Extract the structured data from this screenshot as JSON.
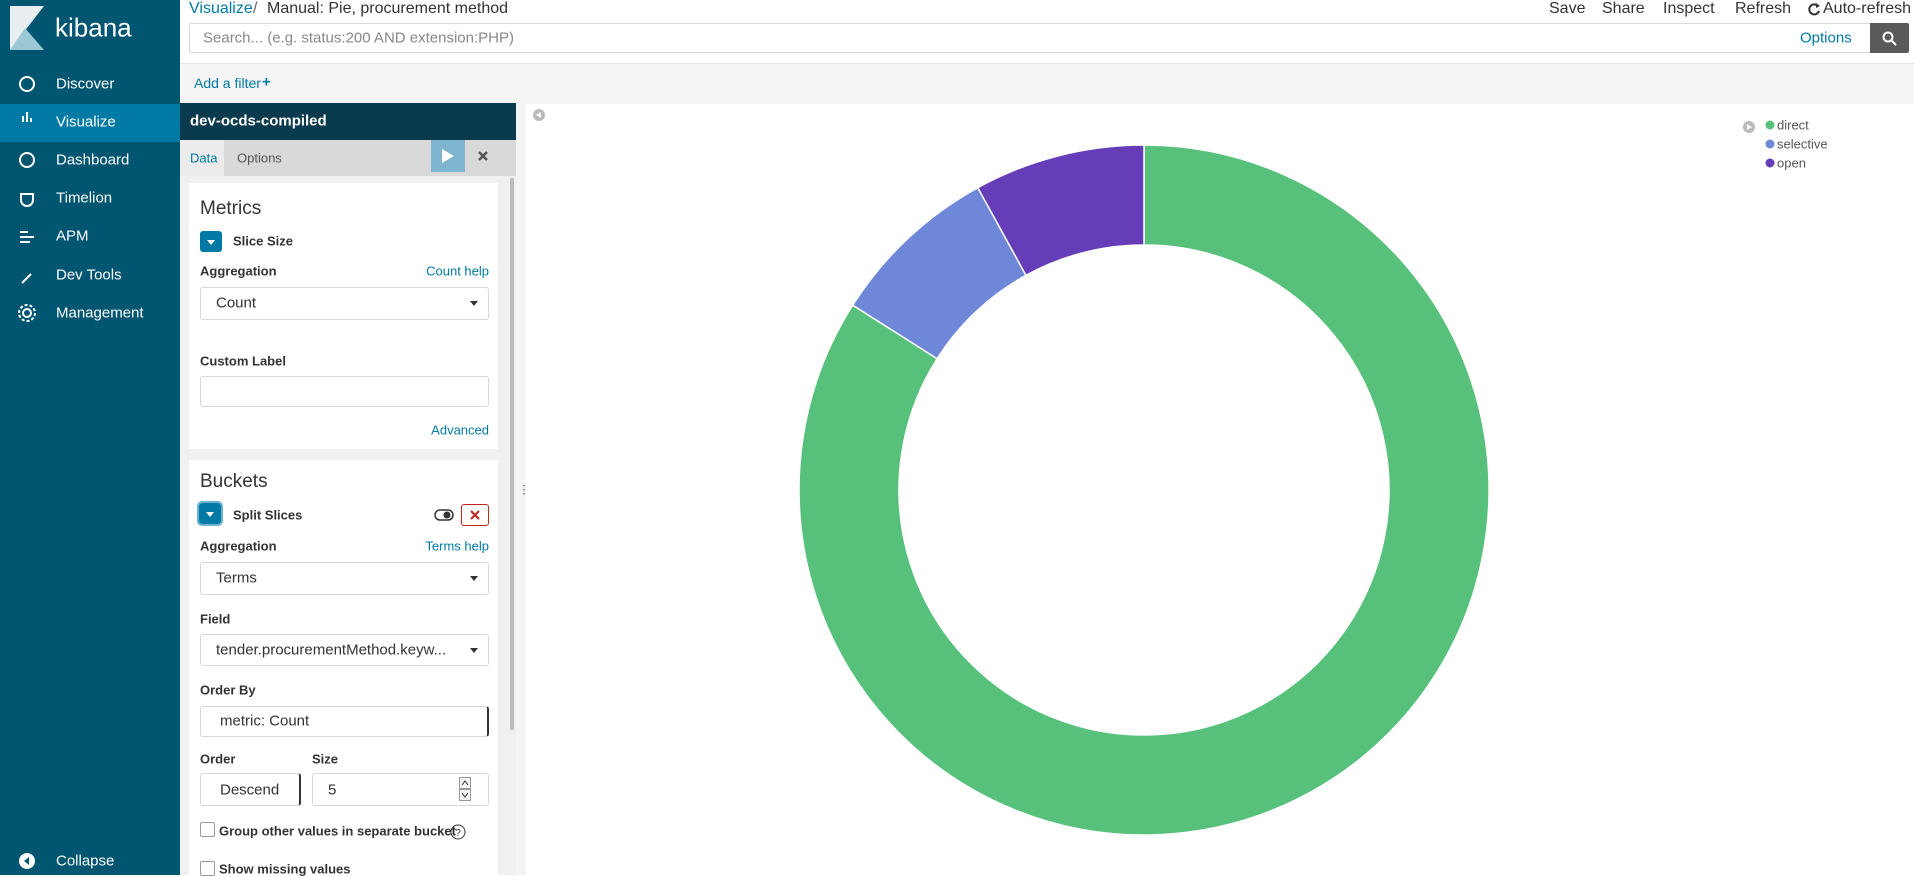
{
  "sidebar": {
    "brand": "kibana",
    "nav": [
      "Discover",
      "Visualize",
      "Dashboard",
      "Timelion",
      "APM",
      "Dev Tools",
      "Management"
    ],
    "collapse": "Collapse"
  },
  "header": {
    "breadcrumb": [
      "Visualize",
      "Manual: Pie, procurement method"
    ],
    "actions": [
      "Save",
      "Share",
      "Inspect",
      "Refresh",
      "Auto-refresh"
    ],
    "search_placeholder": "Search... (e.g. status:200 AND extension:PHP)",
    "options": "Options",
    "add_filter": "Add a filter"
  },
  "editor": {
    "index": "dev-ocds-compiled",
    "tabs": [
      "Data",
      "Options"
    ],
    "metrics": {
      "title": "Metrics",
      "agg_name": "Slice Size",
      "aggregation_label": "Aggregation",
      "help": "Count help",
      "aggregation": "Count",
      "custom_label": "Custom Label",
      "advanced": "Advanced"
    },
    "buckets": {
      "title": "Buckets",
      "agg_name": "Split Slices",
      "aggregation_label": "Aggregation",
      "help": "Terms help",
      "aggregation": "Terms",
      "field_label": "Field",
      "field": "tender.procurementMethod.keyw...",
      "order_by_label": "Order By",
      "order_by": "metric: Count",
      "order_label": "Order",
      "order": "Descend",
      "size_label": "Size",
      "size": 5,
      "group_other": "Group other values in separate bucket",
      "show_missing": "Show missing values"
    }
  },
  "chart_data": {
    "type": "pie",
    "donut": true,
    "categories": [
      "direct",
      "selective",
      "open"
    ],
    "values": [
      84,
      8,
      8
    ],
    "colors": [
      "#57c17b",
      "#6f87d8",
      "#663db8"
    ],
    "legend": "top-right"
  }
}
